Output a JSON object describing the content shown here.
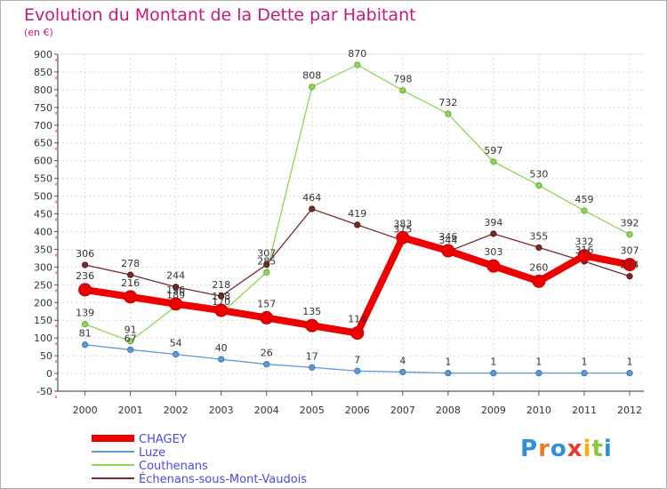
{
  "header": {
    "title": "Evolution du Montant de la Dette par Habitant",
    "unit": "(en €)"
  },
  "logo": {
    "text": "Proxiti",
    "letter_colors": [
      "#2f8fd8",
      "#f07c1c",
      "#2f8fd8",
      "#e8392a",
      "#f0b400",
      "#8cc63f",
      "#2f8fd8"
    ]
  },
  "chart_data": {
    "type": "line",
    "x": [
      "2000",
      "2001",
      "2002",
      "2003",
      "2004",
      "2005",
      "2006",
      "2007",
      "2008",
      "2009",
      "2010",
      "2011",
      "2012"
    ],
    "ylim": [
      -50,
      900
    ],
    "yticks": [
      -50,
      0,
      50,
      100,
      150,
      200,
      250,
      300,
      350,
      400,
      450,
      500,
      550,
      600,
      650,
      700,
      750,
      800,
      850,
      900
    ],
    "grid": true,
    "legend_position": "bottom-left",
    "series": [
      {
        "name": "CHAGEY",
        "color": "#ee0000",
        "values": [
          236,
          216,
          196,
          178,
          157,
          135,
          114,
          383,
          346,
          303,
          260,
          332,
          307
        ]
      },
      {
        "name": "Luze",
        "color": "#5b9bd5",
        "values": [
          81,
          67,
          54,
          40,
          26,
          17,
          7,
          4,
          1,
          1,
          1,
          1,
          1
        ]
      },
      {
        "name": "Couthenans",
        "color": "#8ed65a",
        "values": [
          139,
          91,
          189,
          170,
          285,
          808,
          870,
          798,
          732,
          597,
          530,
          459,
          392
        ]
      },
      {
        "name": "Échenans-sous-Mont-Vaudois",
        "color": "#7a2a2a",
        "values": [
          306,
          278,
          244,
          218,
          307,
          464,
          419,
          375,
          344,
          394,
          355,
          316,
          274
        ]
      }
    ]
  }
}
